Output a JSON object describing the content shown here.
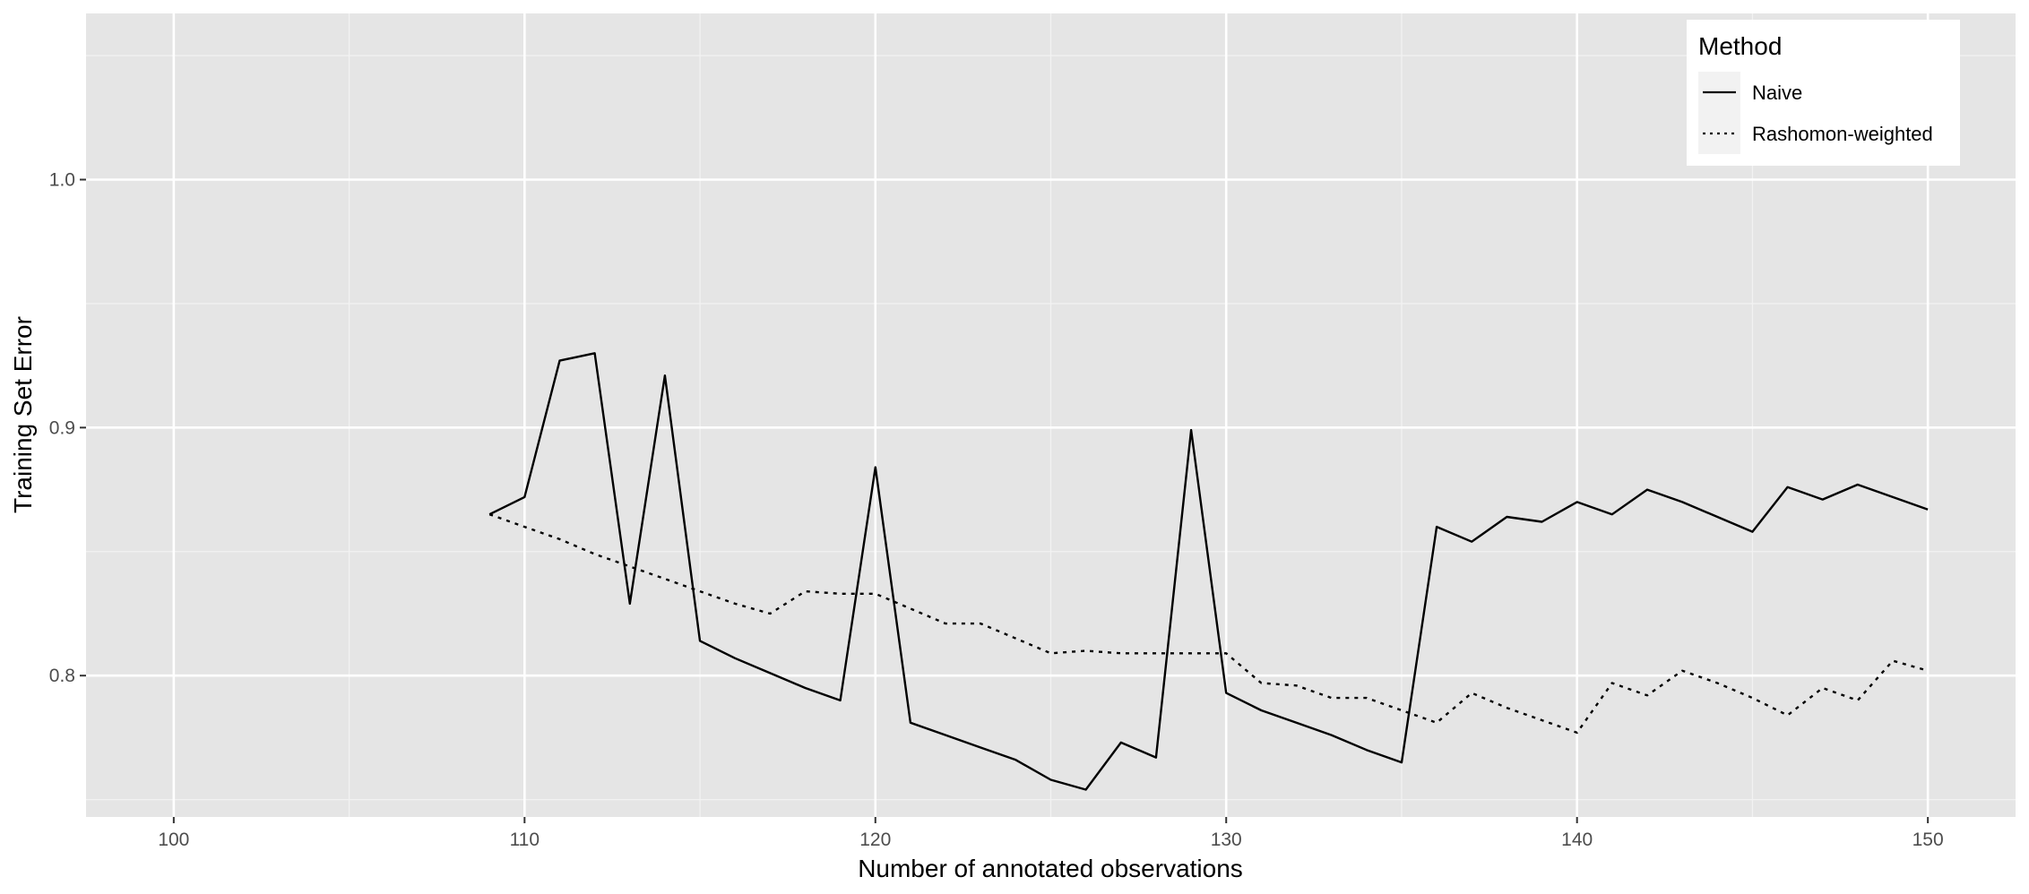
{
  "chart_data": {
    "type": "line",
    "xlabel": "Number of annotated observations",
    "ylabel": "Training Set Error",
    "xlim": [
      97.5,
      152.5
    ],
    "ylim": [
      0.743,
      1.067
    ],
    "x_ticks": [
      100,
      110,
      120,
      130,
      140,
      150
    ],
    "x_tick_labels": [
      "100",
      "110",
      "120",
      "130",
      "140",
      "150"
    ],
    "y_ticks": [
      0.8,
      0.9,
      1.0
    ],
    "y_tick_labels": [
      "0.8",
      "0.9",
      "1.0"
    ],
    "grid": true,
    "legend": {
      "title": "Method",
      "position": "top-right",
      "entries": [
        {
          "label": "Naive",
          "linetype": "solid"
        },
        {
          "label": "Rashomon-weighted",
          "linetype": "dotted"
        }
      ]
    },
    "series": [
      {
        "name": "Naive",
        "linetype": "solid",
        "color": "#000000",
        "x": [
          109,
          110,
          111,
          112,
          113,
          114,
          115,
          116,
          117,
          118,
          119,
          120,
          121,
          122,
          123,
          124,
          125,
          126,
          127,
          128,
          129,
          130,
          131,
          132,
          133,
          134,
          135,
          136,
          137,
          138,
          139,
          140,
          141,
          142,
          143,
          144,
          145,
          146,
          147,
          148,
          149,
          150
        ],
        "y": [
          0.865,
          0.872,
          0.927,
          0.93,
          0.829,
          0.921,
          0.814,
          0.807,
          0.801,
          0.795,
          0.79,
          0.884,
          0.781,
          0.776,
          0.771,
          0.766,
          0.758,
          0.754,
          0.773,
          0.767,
          0.899,
          0.793,
          0.786,
          0.781,
          0.776,
          0.77,
          0.765,
          0.86,
          0.854,
          0.864,
          0.862,
          0.87,
          0.865,
          0.875,
          0.87,
          0.864,
          0.858,
          0.876,
          0.871,
          0.877,
          0.872,
          0.867
        ]
      },
      {
        "name": "Rashomon-weighted",
        "linetype": "dotted",
        "color": "#000000",
        "x": [
          109,
          110,
          111,
          112,
          113,
          114,
          115,
          116,
          117,
          118,
          119,
          120,
          121,
          122,
          123,
          124,
          125,
          126,
          127,
          128,
          129,
          130,
          131,
          132,
          133,
          134,
          135,
          136,
          137,
          138,
          139,
          140,
          141,
          142,
          143,
          144,
          145,
          146,
          147,
          148,
          149,
          150
        ],
        "y": [
          0.865,
          0.86,
          0.855,
          0.849,
          0.844,
          0.839,
          0.834,
          0.829,
          0.825,
          0.834,
          0.833,
          0.833,
          0.827,
          0.821,
          0.821,
          0.815,
          0.809,
          0.81,
          0.809,
          0.809,
          0.809,
          0.809,
          0.797,
          0.796,
          0.791,
          0.791,
          0.786,
          0.781,
          0.793,
          0.787,
          0.782,
          0.777,
          0.797,
          0.792,
          0.802,
          0.797,
          0.791,
          0.784,
          0.795,
          0.79,
          0.806,
          0.802
        ]
      }
    ]
  }
}
